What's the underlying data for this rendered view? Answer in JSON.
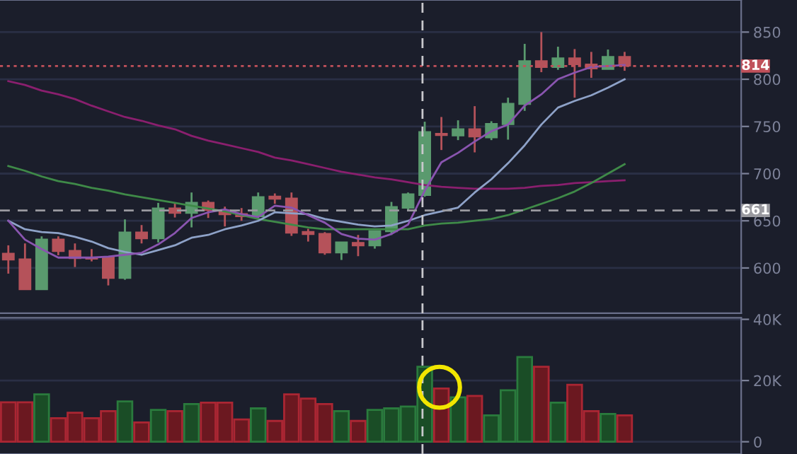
{
  "chart_data": [
    {
      "type": "candlestick",
      "categories": [
        null,
        null,
        null,
        null,
        null,
        null,
        null,
        null,
        null,
        null,
        null,
        null,
        null,
        null,
        null,
        null,
        null,
        null,
        null,
        null,
        null,
        null,
        null,
        null,
        null,
        null,
        null,
        null,
        null,
        null,
        null,
        null,
        null,
        null,
        null,
        null,
        null,
        null,
        null,
        null,
        null,
        null,
        null
      ],
      "ohlc": [
        [
          615.5,
          624,
          594,
          608.5
        ],
        [
          609.5,
          626,
          577,
          577
        ],
        [
          577,
          633.5,
          577,
          630.5
        ],
        [
          630.5,
          633.5,
          613.5,
          617.5
        ],
        [
          618.5,
          626,
          601,
          610
        ],
        [
          611.5,
          620,
          607,
          609.5
        ],
        [
          611.5,
          611.5,
          581.5,
          589
        ],
        [
          589,
          651.5,
          587.5,
          638
        ],
        [
          638,
          645.5,
          626,
          631
        ],
        [
          631,
          669,
          627,
          663.5
        ],
        [
          663.5,
          669,
          653.5,
          658
        ],
        [
          658,
          680,
          643,
          669.5
        ],
        [
          669.5,
          671.5,
          653,
          661
        ],
        [
          661.5,
          665,
          644,
          656.5
        ],
        [
          657.5,
          663.5,
          650,
          654.5
        ],
        [
          654.5,
          680,
          651,
          675.5
        ],
        [
          676,
          679,
          668,
          673
        ],
        [
          674,
          680,
          634,
          637
        ],
        [
          638.5,
          641.5,
          628,
          635.5
        ],
        [
          636.5,
          638,
          614,
          616
        ],
        [
          616,
          627.5,
          608.5,
          627.5
        ],
        [
          627,
          635,
          612.5,
          623.5
        ],
        [
          623.5,
          639.5,
          620.5,
          639.5
        ],
        [
          638.5,
          670,
          635,
          665
        ],
        [
          663.5,
          680,
          661.5,
          678.5
        ],
        [
          677,
          755,
          675.5,
          744.5
        ],
        [
          742.5,
          760,
          725,
          740.5
        ],
        [
          740,
          756.5,
          735.5,
          747.5
        ],
        [
          747.5,
          771.5,
          722.5,
          739
        ],
        [
          738,
          755.5,
          735.5,
          753
        ],
        [
          752,
          780.5,
          736,
          774.5
        ],
        [
          773.5,
          837.5,
          766.5,
          819.5
        ],
        [
          819.5,
          850,
          807.5,
          812.5
        ],
        [
          812.5,
          834.5,
          810,
          822.5
        ],
        [
          822.5,
          832,
          780.5,
          815.5
        ],
        [
          816,
          829,
          801.5,
          811
        ],
        [
          810.5,
          831.5,
          810.5,
          824
        ],
        [
          824,
          829,
          809,
          814
        ],
        null,
        null,
        null,
        null,
        null
      ],
      "colors": [
        "#b5525a",
        "#b5525a",
        "#5a9a6e",
        "#b5525a",
        "#b5525a",
        "#b5525a",
        "#b5525a",
        "#5a9a6e",
        "#b5525a",
        "#5a9a6e",
        "#b5525a",
        "#5a9a6e",
        "#b5525a",
        "#b5525a",
        "#b5525a",
        "#5a9a6e",
        "#b5525a",
        "#b5525a",
        "#b5525a",
        "#b5525a",
        "#5a9a6e",
        "#b5525a",
        "#5a9a6e",
        "#5a9a6e",
        "#5a9a6e",
        "#5a9a6e",
        "#b5525a",
        "#5a9a6e",
        "#b5525a",
        "#5a9a6e",
        "#5a9a6e",
        "#5a9a6e",
        "#b5525a",
        "#5a9a6e",
        "#b5525a",
        "#b5525a",
        "#5a9a6e",
        "#b5525a",
        null,
        null,
        null,
        null,
        null
      ],
      "series": [
        {
          "type": "line",
          "color": "#8a1f6e",
          "values": [
            798,
            794,
            788,
            784,
            779,
            772,
            766,
            760,
            756,
            751,
            747,
            740,
            735,
            731,
            727,
            723,
            717,
            714,
            710,
            706,
            702,
            699,
            696,
            694,
            691,
            688,
            686,
            685,
            684,
            684,
            684,
            685,
            687,
            688,
            690,
            691,
            692,
            693,
            null,
            null,
            null,
            null,
            null
          ]
        },
        {
          "type": "line",
          "color": "#3f8a48",
          "values": [
            708,
            703,
            697,
            692,
            689,
            685,
            682,
            678,
            675,
            672,
            669,
            666,
            663,
            660,
            656,
            652,
            649,
            646,
            643,
            641,
            641,
            641,
            641,
            641,
            641,
            645,
            647,
            648,
            650,
            652,
            656,
            662,
            668,
            674,
            681,
            690,
            700,
            710,
            null,
            null,
            null,
            null,
            null
          ]
        },
        {
          "type": "line",
          "color": "#8ea2c8",
          "values": [
            650,
            641,
            638,
            637,
            633,
            628,
            621,
            617,
            614,
            619,
            624,
            632,
            635,
            641,
            645,
            650,
            659,
            658,
            657,
            652,
            649,
            646,
            644,
            645,
            650,
            656,
            660,
            664,
            680,
            694,
            711,
            730,
            752,
            770,
            777,
            783,
            791,
            800,
            null,
            null,
            null,
            null,
            null
          ]
        },
        {
          "type": "line",
          "color": "#8a55b0",
          "values": [
            650,
            630,
            620,
            611,
            611,
            611,
            612,
            614,
            616,
            625,
            637,
            653,
            659,
            662,
            657,
            654,
            666,
            664,
            656,
            648,
            636,
            631,
            630,
            636,
            646,
            682,
            712,
            722,
            734,
            745,
            752,
            772,
            784,
            800,
            807,
            813,
            814,
            815,
            null,
            null,
            null,
            null,
            null
          ]
        }
      ],
      "ylim": [
        552,
        884
      ],
      "yticks": [
        600,
        650,
        700,
        750,
        800,
        850
      ],
      "grid": true,
      "tick_labels": "y",
      "ref_lines": [
        {
          "axis": "y",
          "value": 814,
          "label": "814",
          "color": "#c0505a",
          "line_style": "dotted"
        },
        {
          "axis": "y",
          "value": 661,
          "label": "661",
          "color": "#9a9aa0",
          "line_style": "dashed"
        }
      ]
    },
    {
      "type": "bar",
      "categories": [
        null,
        null,
        null,
        null,
        null,
        null,
        null,
        null,
        null,
        null,
        null,
        null,
        null,
        null,
        null,
        null,
        null,
        null,
        null,
        null,
        null,
        null,
        null,
        null,
        null,
        null,
        null,
        null,
        null,
        null,
        null,
        null,
        null,
        null,
        null,
        null,
        null,
        null,
        null,
        null,
        null,
        null,
        null
      ],
      "values": [
        12900,
        12900,
        15500,
        7700,
        9500,
        7700,
        10000,
        13200,
        6300,
        10400,
        10000,
        12300,
        12800,
        12800,
        7300,
        10900,
        6800,
        15500,
        14100,
        12300,
        10000,
        6800,
        10400,
        10900,
        11500,
        24500,
        17400,
        14500,
        15000,
        8600,
        16800,
        27700,
        24500,
        12800,
        18600,
        10000,
        9100,
        8600,
        null,
        null,
        null,
        null,
        null
      ],
      "colors": [
        "#6b1820",
        "#6b1820",
        "#1a4d26",
        "#6b1820",
        "#6b1820",
        "#6b1820",
        "#6b1820",
        "#1a4d26",
        "#6b1820",
        "#1a4d26",
        "#6b1820",
        "#1a4d26",
        "#6b1820",
        "#6b1820",
        "#6b1820",
        "#1a4d26",
        "#6b1820",
        "#6b1820",
        "#6b1820",
        "#6b1820",
        "#1a4d26",
        "#6b1820",
        "#1a4d26",
        "#1a4d26",
        "#1a4d26",
        "#1a4d26",
        "#6b1820",
        "#1a4d26",
        "#6b1820",
        "#1a4d26",
        "#1a4d26",
        "#1a4d26",
        "#6b1820",
        "#1a4d26",
        "#6b1820",
        "#6b1820",
        "#1a4d26",
        "#6b1820",
        null,
        null,
        null,
        null,
        null
      ],
      "ylim": [
        -4000,
        40500
      ],
      "yticks": [
        0,
        {
          "value": 20000,
          "label": "20K"
        },
        {
          "value": 40000,
          "label": "40K"
        }
      ],
      "grid": true,
      "tick_labels": "y"
    }
  ]
}
